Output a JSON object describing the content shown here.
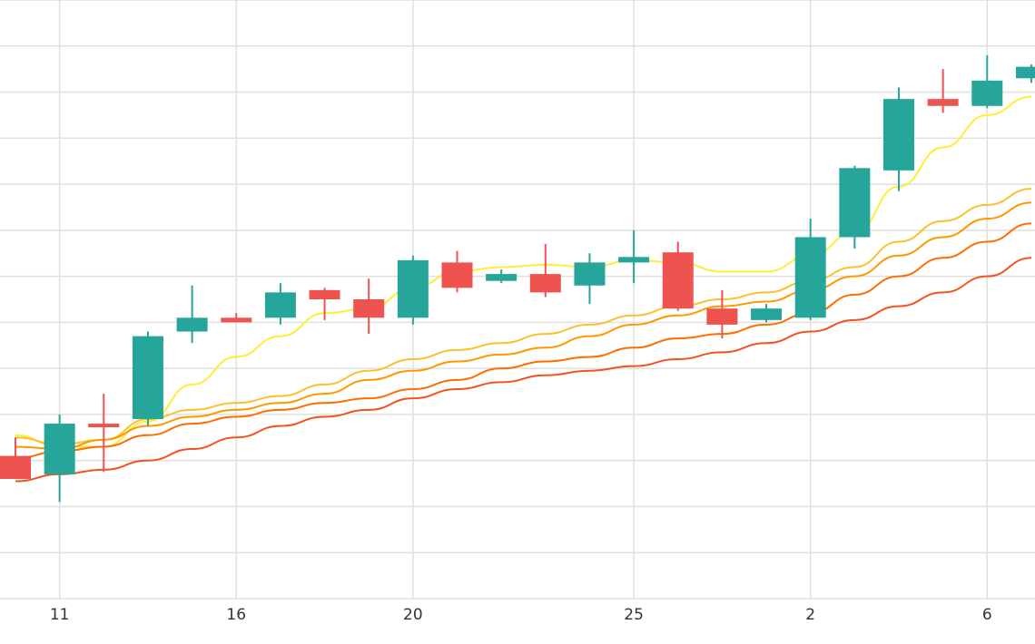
{
  "chart_data": {
    "type": "candlestick",
    "x_tick_labels": [
      "11",
      "16",
      "20",
      "25",
      "2",
      "6"
    ],
    "x_tick_index": [
      1,
      5,
      9,
      14,
      18,
      22
    ],
    "ylim": [
      0,
      13
    ],
    "grid": true,
    "candles": [
      {
        "o": 3.1,
        "h": 3.5,
        "l": 2.6,
        "c": 2.6
      },
      {
        "o": 2.7,
        "h": 4.0,
        "l": 2.1,
        "c": 3.8
      },
      {
        "o": 3.8,
        "h": 4.45,
        "l": 2.75,
        "c": 3.75
      },
      {
        "o": 3.9,
        "h": 5.8,
        "l": 3.75,
        "c": 5.7
      },
      {
        "o": 5.8,
        "h": 6.8,
        "l": 5.55,
        "c": 6.1
      },
      {
        "o": 6.1,
        "h": 6.2,
        "l": 6.0,
        "c": 6.0
      },
      {
        "o": 6.1,
        "h": 6.85,
        "l": 5.95,
        "c": 6.65
      },
      {
        "o": 6.7,
        "h": 6.75,
        "l": 6.05,
        "c": 6.5
      },
      {
        "o": 6.5,
        "h": 6.95,
        "l": 5.75,
        "c": 6.1
      },
      {
        "o": 6.1,
        "h": 7.45,
        "l": 5.95,
        "c": 7.35
      },
      {
        "o": 7.3,
        "h": 7.55,
        "l": 6.65,
        "c": 6.75
      },
      {
        "o": 6.9,
        "h": 7.15,
        "l": 6.85,
        "c": 7.05
      },
      {
        "o": 7.05,
        "h": 7.7,
        "l": 6.55,
        "c": 6.65
      },
      {
        "o": 6.8,
        "h": 7.5,
        "l": 6.4,
        "c": 7.3
      },
      {
        "o": 7.3,
        "h": 8.0,
        "l": 6.85,
        "c": 7.42
      },
      {
        "o": 7.52,
        "h": 7.75,
        "l": 6.25,
        "c": 6.3
      },
      {
        "o": 6.3,
        "h": 6.7,
        "l": 5.65,
        "c": 5.95
      },
      {
        "o": 6.05,
        "h": 6.4,
        "l": 6.0,
        "c": 6.3
      },
      {
        "o": 6.1,
        "h": 8.25,
        "l": 6.05,
        "c": 7.85
      },
      {
        "o": 7.85,
        "h": 9.4,
        "l": 7.6,
        "c": 9.35
      },
      {
        "o": 9.3,
        "h": 11.1,
        "l": 8.85,
        "c": 10.85
      },
      {
        "o": 10.85,
        "h": 11.5,
        "l": 10.55,
        "c": 10.7
      },
      {
        "o": 10.7,
        "h": 11.8,
        "l": 10.65,
        "c": 11.25
      },
      {
        "o": 11.3,
        "h": 11.6,
        "l": 11.2,
        "c": 11.55
      }
    ],
    "series": [
      {
        "color": "#ffee33",
        "values": [
          3.55,
          3.3,
          3.3,
          3.85,
          4.65,
          5.25,
          5.7,
          6.2,
          6.3,
          6.75,
          7.1,
          7.2,
          7.25,
          7.2,
          7.35,
          7.3,
          7.1,
          7.1,
          7.45,
          7.95,
          8.95,
          9.8,
          10.5,
          10.9
        ]
      },
      {
        "color": "#fbc02d",
        "values": [
          3.5,
          3.35,
          3.45,
          3.9,
          4.1,
          4.25,
          4.4,
          4.65,
          4.95,
          5.2,
          5.4,
          5.55,
          5.75,
          5.95,
          6.15,
          6.35,
          6.5,
          6.65,
          6.9,
          7.2,
          7.75,
          8.2,
          8.55,
          8.9
        ]
      },
      {
        "color": "#ff9800",
        "values": [
          3.3,
          3.25,
          3.45,
          3.75,
          3.95,
          4.1,
          4.25,
          4.45,
          4.75,
          4.95,
          5.15,
          5.3,
          5.45,
          5.7,
          5.95,
          6.15,
          6.35,
          6.45,
          6.7,
          7.0,
          7.45,
          7.85,
          8.25,
          8.6
        ]
      },
      {
        "color": "#ff6d00",
        "values": [
          3.05,
          3.2,
          3.3,
          3.55,
          3.8,
          3.95,
          4.1,
          4.25,
          4.35,
          4.55,
          4.75,
          5.0,
          5.15,
          5.25,
          5.45,
          5.65,
          5.75,
          5.95,
          6.2,
          6.6,
          7.0,
          7.4,
          7.75,
          8.15
        ]
      },
      {
        "color": "#f4511e",
        "values": [
          2.55,
          2.7,
          2.8,
          3.0,
          3.25,
          3.5,
          3.75,
          3.95,
          4.1,
          4.35,
          4.55,
          4.7,
          4.85,
          4.95,
          5.05,
          5.2,
          5.35,
          5.55,
          5.8,
          6.05,
          6.35,
          6.65,
          7.0,
          7.4
        ]
      }
    ],
    "colors": {
      "up": "#26a69a",
      "down": "#ef5350",
      "grid": "#e0e0e0"
    }
  }
}
